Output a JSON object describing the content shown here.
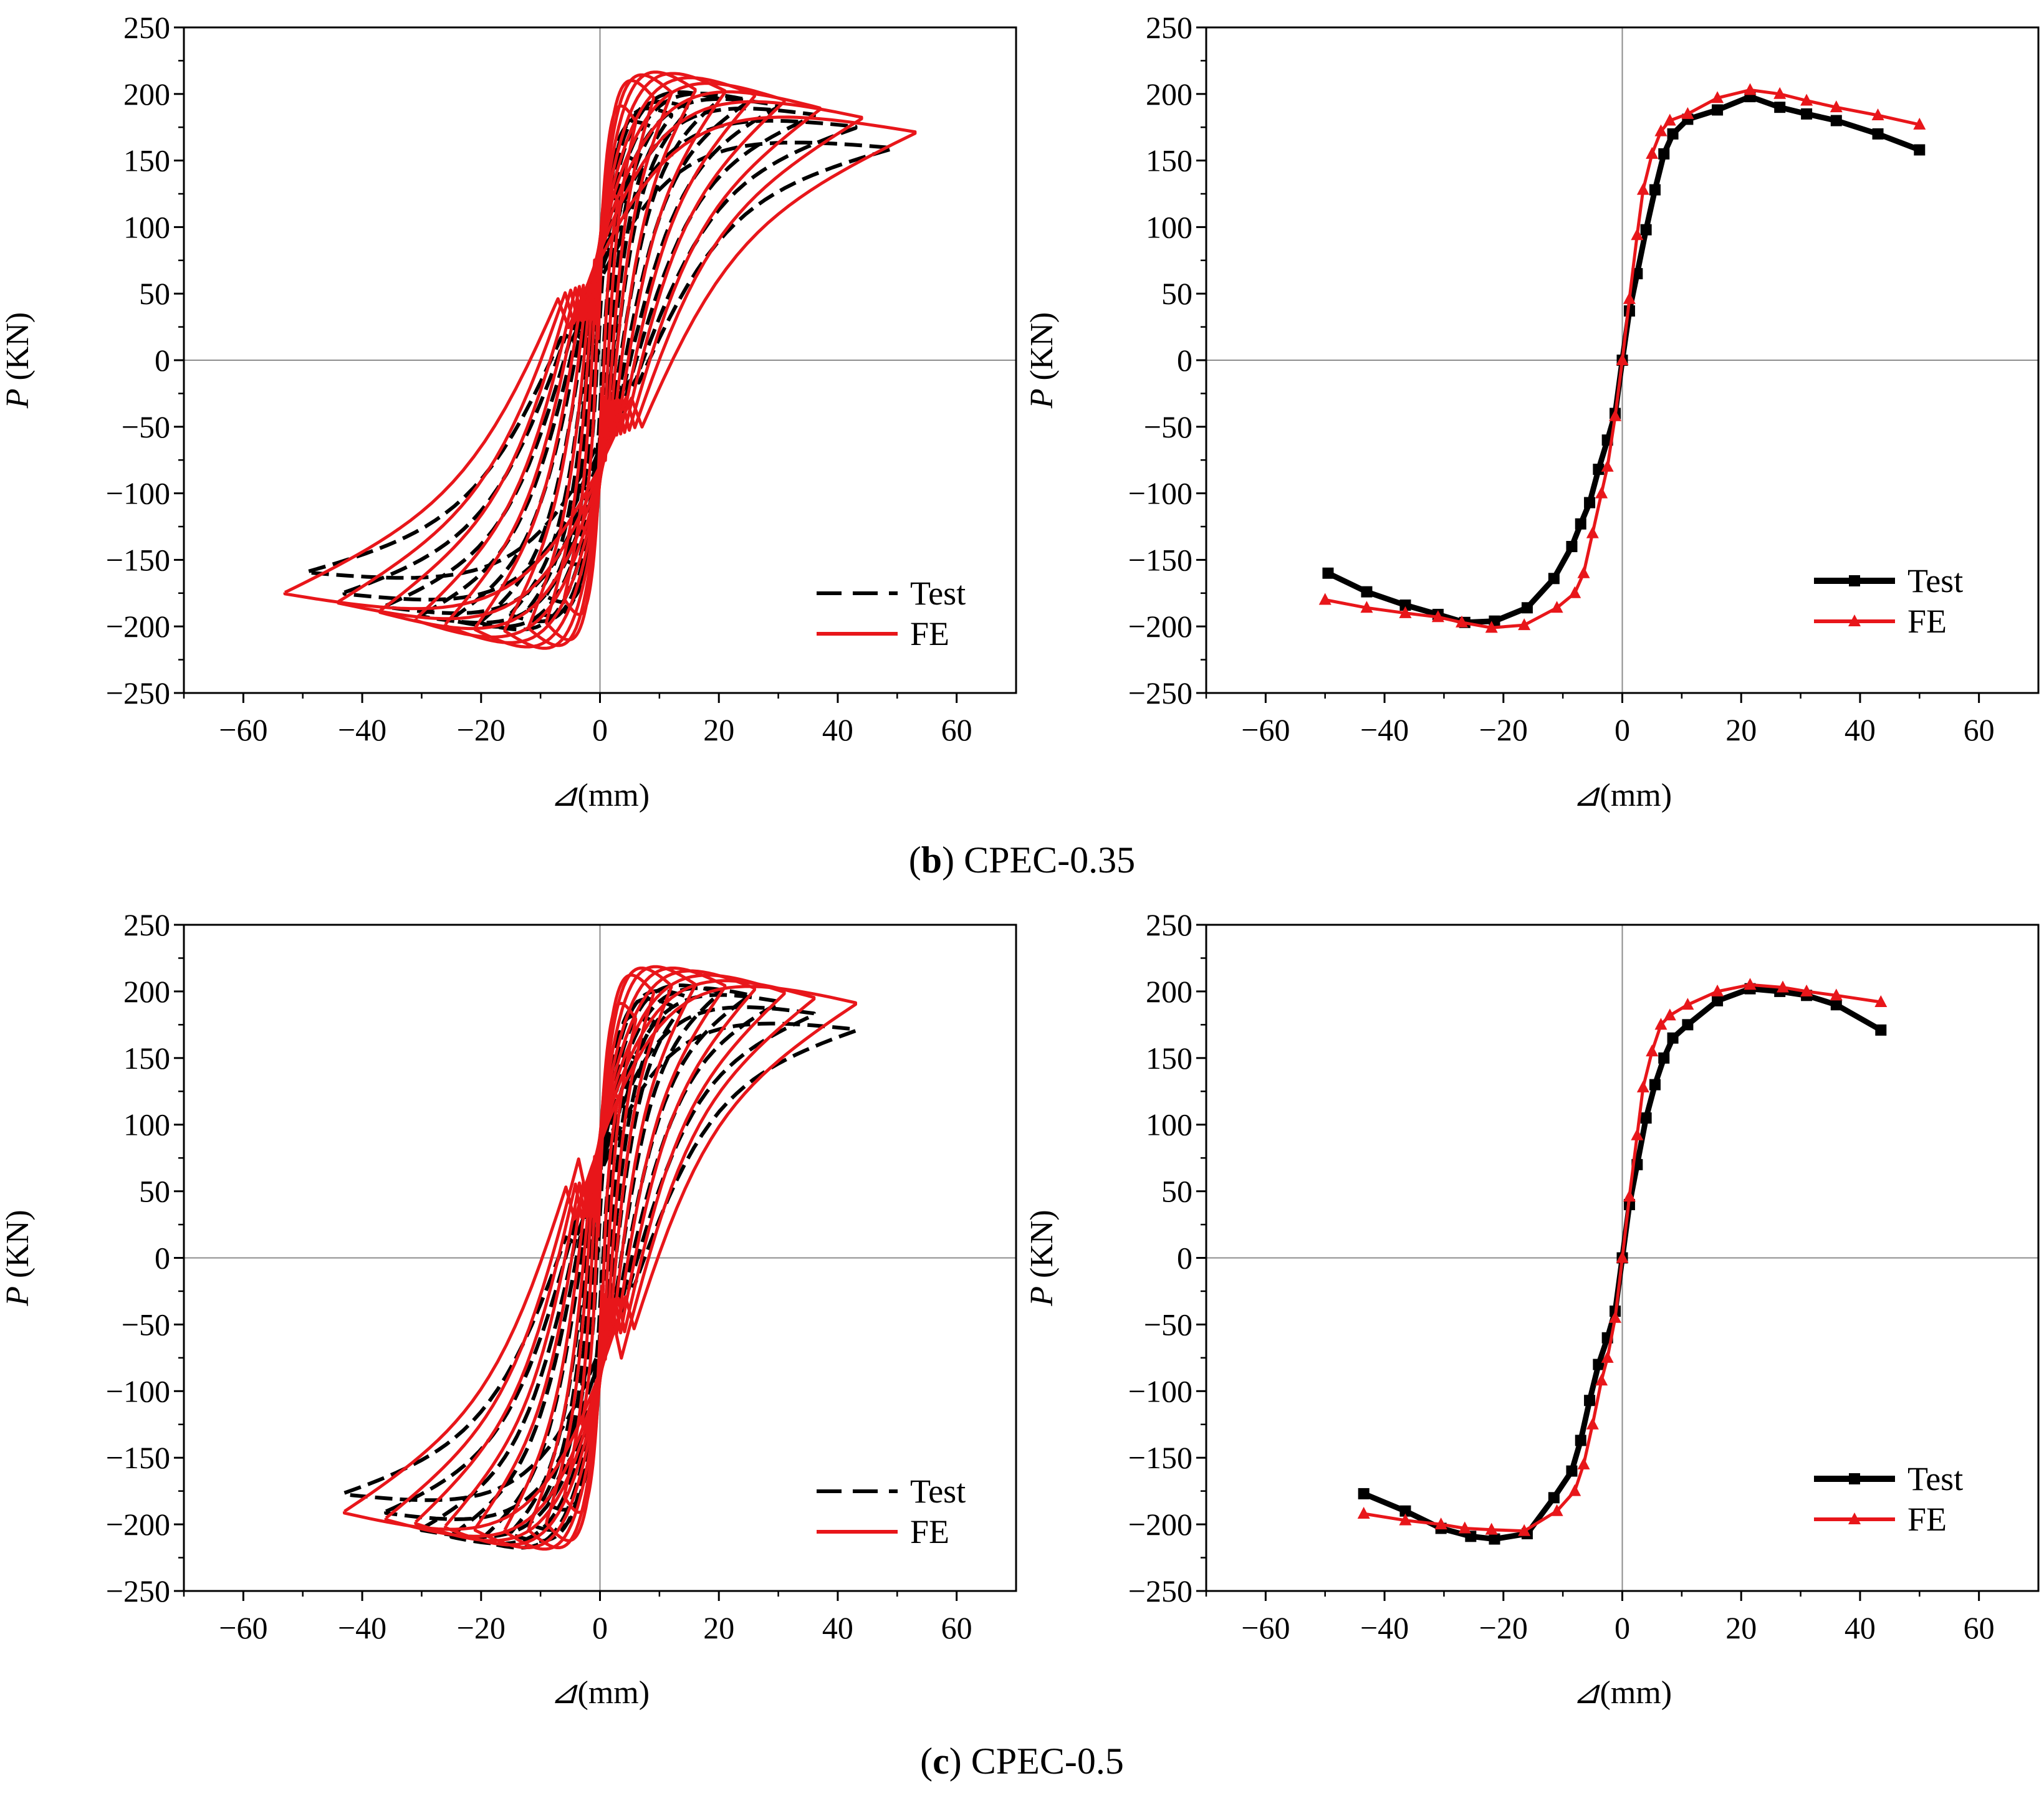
{
  "captions": [
    {
      "paren_open": "(",
      "letter": "b",
      "rest": ") CPEC-0.35"
    },
    {
      "paren_open": "(",
      "letter": "c",
      "rest": ") CPEC-0.5"
    }
  ],
  "colors": {
    "test": "#000000",
    "fe": "#e8161a",
    "zero_line": "#8c8c8c"
  },
  "chart_data": [
    {
      "id": "b-hysteresis",
      "type": "line",
      "kind": "hysteresis",
      "title": "",
      "xlabel_symbol": "⊿",
      "xlabel": "(mm)",
      "ylabel_symbol": "P",
      "ylabel": " (KN)",
      "xlim": [
        -70,
        70
      ],
      "ylim": [
        -250,
        250
      ],
      "xticks": [
        -60,
        -40,
        -20,
        0,
        20,
        40,
        60
      ],
      "yticks": [
        -250,
        -200,
        -150,
        -100,
        -50,
        0,
        50,
        100,
        150,
        200,
        250
      ],
      "legend_position": "bottom-right",
      "series": [
        {
          "name": "Test",
          "style": "dashed",
          "amplitudes": [
            3,
            6,
            9,
            12,
            15,
            20,
            25,
            30,
            36,
            43,
            49
          ],
          "peaks_pos": [
            90,
            150,
            175,
            185,
            190,
            197,
            196,
            192,
            185,
            176,
            160
          ],
          "peaks_neg": [
            -95,
            -150,
            -178,
            -188,
            -192,
            -198,
            -196,
            -193,
            -186,
            -176,
            -160
          ],
          "pinch": 0.7
        },
        {
          "name": "FE",
          "style": "solid",
          "amplitudes": [
            3,
            6,
            9,
            12,
            16,
            21,
            26,
            31,
            37,
            44,
            53
          ],
          "peaks_pos": [
            120,
            180,
            198,
            202,
            204,
            203,
            200,
            196,
            190,
            183,
            172
          ],
          "peaks_neg": [
            -125,
            -180,
            -198,
            -202,
            -204,
            -203,
            -200,
            -196,
            -190,
            -183,
            -176
          ],
          "pinch": 0.45
        }
      ]
    },
    {
      "id": "b-skeleton",
      "type": "line",
      "kind": "skeleton",
      "title": "",
      "xlabel_symbol": "⊿",
      "xlabel": "(mm)",
      "ylabel_symbol": "P",
      "ylabel": " (KN)",
      "xlim": [
        -70,
        70
      ],
      "ylim": [
        -250,
        250
      ],
      "xticks": [
        -60,
        -40,
        -20,
        0,
        20,
        40,
        60
      ],
      "yticks": [
        -250,
        -200,
        -150,
        -100,
        -50,
        0,
        50,
        100,
        150,
        200,
        250
      ],
      "legend_position": "bottom-right",
      "series": [
        {
          "name": "Test",
          "marker": "square",
          "x": [
            -49.5,
            -43,
            -36.5,
            -31,
            -26.5,
            -21.5,
            -16,
            -11.5,
            -8.5,
            -7,
            -5.5,
            -4,
            -2.5,
            -1.2,
            0,
            1.2,
            2.5,
            4,
            5.5,
            7,
            8.5,
            11,
            16,
            21.5,
            26.5,
            31,
            36,
            43,
            50
          ],
          "y": [
            -160,
            -174,
            -184,
            -191,
            -197,
            -196,
            -186,
            -164,
            -140,
            -123,
            -107,
            -82,
            -60,
            -40,
            0,
            37,
            65,
            98,
            128,
            155,
            170,
            181,
            188,
            198,
            190,
            185,
            180,
            170,
            158
          ]
        },
        {
          "name": "FE",
          "marker": "triangle",
          "x": [
            -50,
            -43,
            -36.5,
            -31,
            -27,
            -22,
            -16.5,
            -11,
            -8,
            -6.5,
            -5,
            -3.5,
            -2.5,
            -1.2,
            0,
            1.2,
            2.5,
            3.5,
            5,
            6.5,
            8,
            11,
            16,
            21.5,
            26.5,
            31,
            36,
            43,
            50
          ],
          "y": [
            -180,
            -186,
            -190,
            -193,
            -197,
            -201,
            -199,
            -186,
            -175,
            -160,
            -130,
            -100,
            -80,
            -42,
            0,
            46,
            94,
            128,
            155,
            172,
            180,
            185,
            197,
            203,
            200,
            195,
            190,
            184,
            177
          ]
        }
      ]
    },
    {
      "id": "c-hysteresis",
      "type": "line",
      "kind": "hysteresis",
      "title": "",
      "xlabel_symbol": "⊿",
      "xlabel": "(mm)",
      "ylabel_symbol": "P",
      "ylabel": " (KN)",
      "xlim": [
        -70,
        70
      ],
      "ylim": [
        -250,
        250
      ],
      "xticks": [
        -60,
        -40,
        -20,
        0,
        20,
        40,
        60
      ],
      "yticks": [
        -250,
        -200,
        -150,
        -100,
        -50,
        0,
        50,
        100,
        150,
        200,
        250
      ],
      "legend_position": "bottom-right",
      "series": [
        {
          "name": "Test",
          "style": "dashed",
          "amplitudes": [
            3,
            6,
            9,
            12,
            15,
            20,
            25,
            30,
            36,
            43
          ],
          "peaks_pos": [
            90,
            150,
            178,
            190,
            196,
            200,
            198,
            193,
            184,
            172
          ],
          "peaks_neg": [
            -95,
            -150,
            -185,
            -200,
            -208,
            -213,
            -210,
            -205,
            -192,
            -178
          ],
          "pinch": 0.7
        },
        {
          "name": "FE",
          "style": "solid",
          "amplitudes": [
            3,
            6,
            9,
            12,
            16,
            21,
            26,
            31,
            36,
            43
          ],
          "peaks_pos": [
            120,
            180,
            200,
            205,
            206,
            205,
            203,
            200,
            196,
            192
          ],
          "peaks_neg": [
            -125,
            -180,
            -200,
            -205,
            -206,
            -205,
            -203,
            -200,
            -197,
            -192
          ],
          "pinch": 0.45
        }
      ]
    },
    {
      "id": "c-skeleton",
      "type": "line",
      "kind": "skeleton",
      "title": "",
      "xlabel_symbol": "⊿",
      "xlabel": "(mm)",
      "ylabel_symbol": "P",
      "ylabel": " (KN)",
      "xlim": [
        -70,
        70
      ],
      "ylim": [
        -250,
        250
      ],
      "xticks": [
        -60,
        -40,
        -20,
        0,
        20,
        40,
        60
      ],
      "yticks": [
        -250,
        -200,
        -150,
        -100,
        -50,
        0,
        50,
        100,
        150,
        200,
        250
      ],
      "legend_position": "bottom-right",
      "series": [
        {
          "name": "Test",
          "marker": "square",
          "x": [
            -43.5,
            -36.5,
            -30.5,
            -25.5,
            -21.5,
            -16,
            -11.5,
            -8.5,
            -7,
            -5.5,
            -4,
            -2.5,
            -1.2,
            0,
            1.2,
            2.5,
            4,
            5.5,
            7,
            8.5,
            11,
            16,
            21.5,
            26.5,
            31,
            36,
            43.5
          ],
          "y": [
            -177,
            -190,
            -203,
            -209,
            -211,
            -207,
            -180,
            -160,
            -137,
            -107,
            -80,
            -60,
            -40,
            0,
            40,
            70,
            105,
            130,
            150,
            165,
            175,
            193,
            202,
            200,
            197,
            190,
            171
          ]
        },
        {
          "name": "FE",
          "marker": "triangle",
          "x": [
            -43.5,
            -36.5,
            -30.5,
            -26.5,
            -22,
            -16.5,
            -11,
            -8,
            -6.5,
            -5,
            -3.5,
            -2.5,
            -1.2,
            0,
            1.2,
            2.5,
            3.5,
            5,
            6.5,
            8,
            11,
            16,
            21.5,
            27,
            31,
            36,
            43.5
          ],
          "y": [
            -192,
            -197,
            -200,
            -203,
            -204,
            -205,
            -190,
            -175,
            -155,
            -125,
            -92,
            -75,
            -45,
            0,
            46,
            92,
            128,
            155,
            175,
            182,
            190,
            200,
            205,
            203,
            200,
            197,
            192
          ]
        }
      ]
    }
  ]
}
